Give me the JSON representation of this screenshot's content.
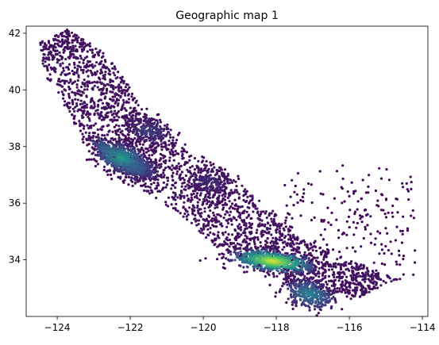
{
  "chart_data": {
    "type": "scatter",
    "title": "Geographic map 1",
    "xlabel": "",
    "ylabel": "",
    "xlim": [
      -124.85,
      -113.85
    ],
    "ylim": [
      32.0,
      42.25
    ],
    "x_ticks": [
      -124,
      -122,
      -120,
      -118,
      -116,
      -114
    ],
    "y_ticks": [
      34,
      36,
      38,
      40,
      42
    ],
    "x_tick_labels": [
      "−124",
      "−122",
      "−120",
      "−118",
      "−116",
      "−114"
    ],
    "y_tick_labels": [
      "34",
      "36",
      "38",
      "40",
      "42"
    ],
    "grid": false,
    "colormap": "viridis",
    "colors": {
      "low": "#440154",
      "mid": "#31688e",
      "high": "#fde725"
    },
    "point_density_clusters": [
      {
        "x": -122.25,
        "y": 37.6,
        "intensity": 0.55
      },
      {
        "x": -118.1,
        "y": 33.95,
        "intensity": 0.95
      },
      {
        "x": -117.1,
        "y": 32.8,
        "intensity": 0.45
      },
      {
        "x": -121.5,
        "y": 38.55,
        "intensity": 0.2
      },
      {
        "x": -119.8,
        "y": 36.75,
        "intensity": 0.15
      },
      {
        "x": -121.9,
        "y": 37.3,
        "intensity": 0.35
      }
    ]
  }
}
